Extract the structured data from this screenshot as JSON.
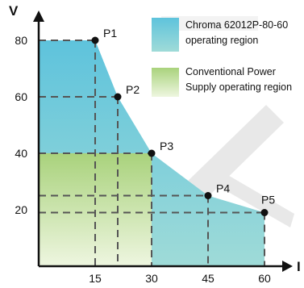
{
  "chart_data": {
    "type": "area",
    "title": "",
    "xlabel": "I",
    "ylabel": "V",
    "xlim": [
      0,
      65
    ],
    "ylim": [
      0,
      90
    ],
    "x_ticks": [
      "15",
      "30",
      "45",
      "60"
    ],
    "y_ticks": [
      "20",
      "40",
      "60",
      "80"
    ],
    "grid": "dashed reference lines to each point",
    "legend_position": "top-right",
    "points": [
      {
        "label": "P1",
        "x": 15,
        "y": 80
      },
      {
        "label": "P2",
        "x": 21,
        "y": 60
      },
      {
        "label": "P3",
        "x": 30,
        "y": 40
      },
      {
        "label": "P4",
        "x": 45,
        "y": 25
      },
      {
        "label": "P5",
        "x": 60,
        "y": 19
      }
    ],
    "regions": [
      {
        "name": "Chroma 62012P-80-60 operating region",
        "legend_lines": [
          "Chroma 62012P-80-60",
          "operating region"
        ],
        "color": "#6cc6d8",
        "boundary": [
          [
            0,
            80
          ],
          [
            15,
            80
          ],
          [
            21,
            60
          ],
          [
            30,
            40
          ],
          [
            45,
            25
          ],
          [
            60,
            19
          ],
          [
            60,
            0
          ],
          [
            0,
            0
          ]
        ]
      },
      {
        "name": "Conventional Power Supply operating region",
        "legend_lines": [
          "Conventional Power",
          "Supply operating region"
        ],
        "color": "#b5d78a",
        "boundary": [
          [
            0,
            40
          ],
          [
            30,
            40
          ],
          [
            30,
            0
          ],
          [
            0,
            0
          ]
        ]
      }
    ]
  },
  "colors": {
    "chroma_top": "#5ec3dc",
    "chroma_bottom": "#9fdbd8",
    "conv_top": "#a9d27c",
    "conv_bottom": "#eef6e0",
    "axis": "#111111",
    "dash": "#555555",
    "watermark": "#e3e3e3"
  }
}
